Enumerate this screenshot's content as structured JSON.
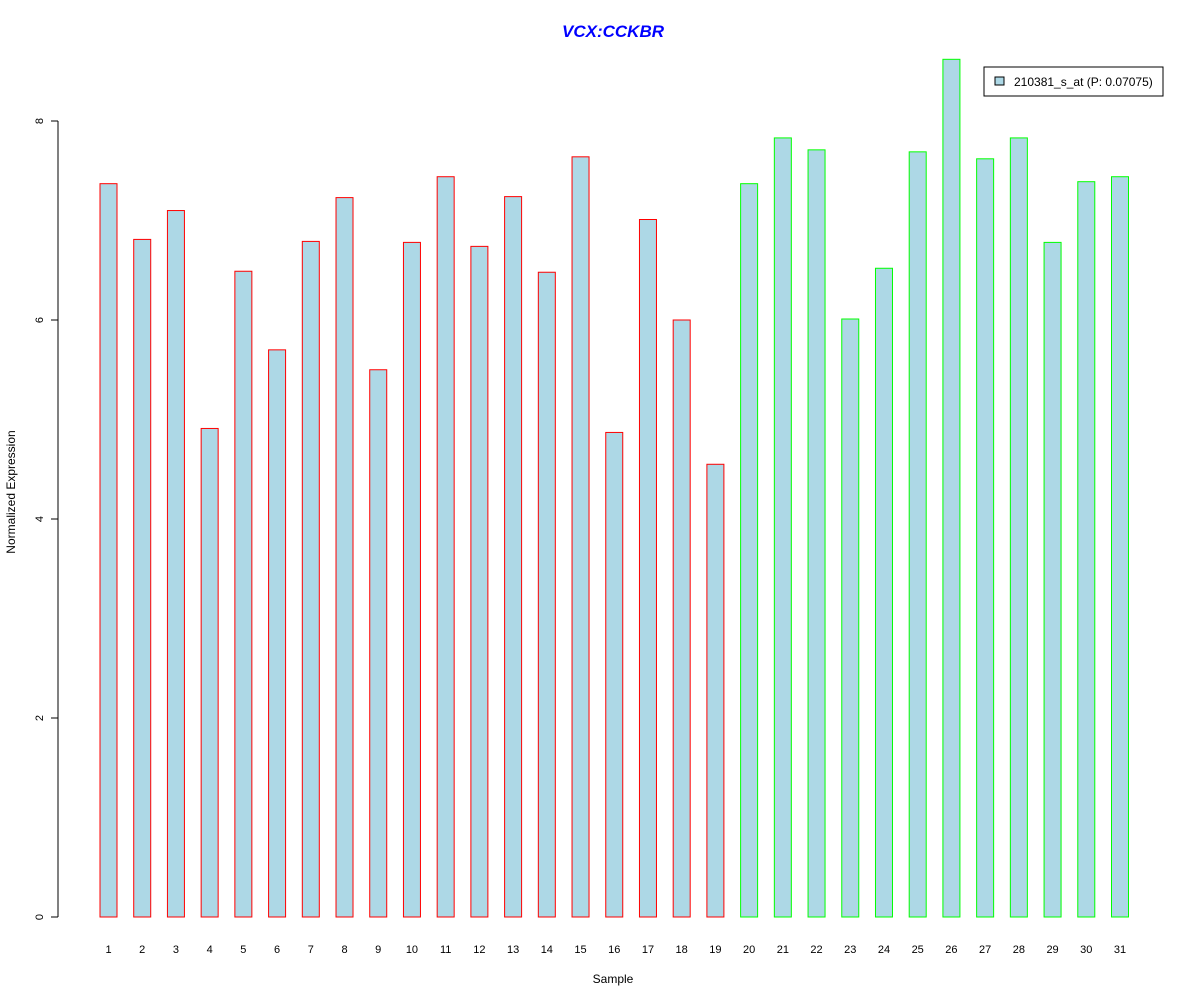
{
  "chart_data": {
    "type": "bar",
    "title": "VCX:CCKBR",
    "xlabel": "Sample",
    "ylabel": "Normalized Expression",
    "ylim": [
      0,
      8
    ],
    "yticks": [
      "0",
      "2",
      "4",
      "6",
      "8"
    ],
    "categories": [
      "1",
      "2",
      "3",
      "4",
      "5",
      "6",
      "7",
      "8",
      "9",
      "10",
      "11",
      "12",
      "13",
      "14",
      "15",
      "16",
      "17",
      "18",
      "19",
      "20",
      "21",
      "22",
      "23",
      "24",
      "25",
      "26",
      "27",
      "28",
      "29",
      "30",
      "31"
    ],
    "values": [
      7.37,
      6.81,
      7.1,
      4.91,
      6.49,
      5.7,
      6.79,
      7.23,
      5.5,
      6.78,
      7.44,
      6.74,
      7.24,
      6.48,
      7.64,
      4.87,
      7.01,
      6.0,
      4.55,
      7.37,
      7.83,
      7.71,
      6.01,
      6.52,
      7.69,
      8.62,
      7.62,
      7.83,
      6.78,
      7.39,
      7.44
    ],
    "groups": [
      "a",
      "a",
      "a",
      "a",
      "a",
      "a",
      "a",
      "a",
      "a",
      "a",
      "a",
      "a",
      "a",
      "a",
      "a",
      "a",
      "a",
      "a",
      "a",
      "b",
      "b",
      "b",
      "b",
      "b",
      "b",
      "b",
      "b",
      "b",
      "b",
      "b",
      "b"
    ],
    "group_colors": {
      "a": "#FF0000",
      "b": "#00FF00"
    },
    "bar_fill": "#ADD8E6",
    "title_color": "#0000FF",
    "legend": {
      "label": "210381_s_at (P: 0.07075)",
      "placement": "top-right"
    }
  }
}
